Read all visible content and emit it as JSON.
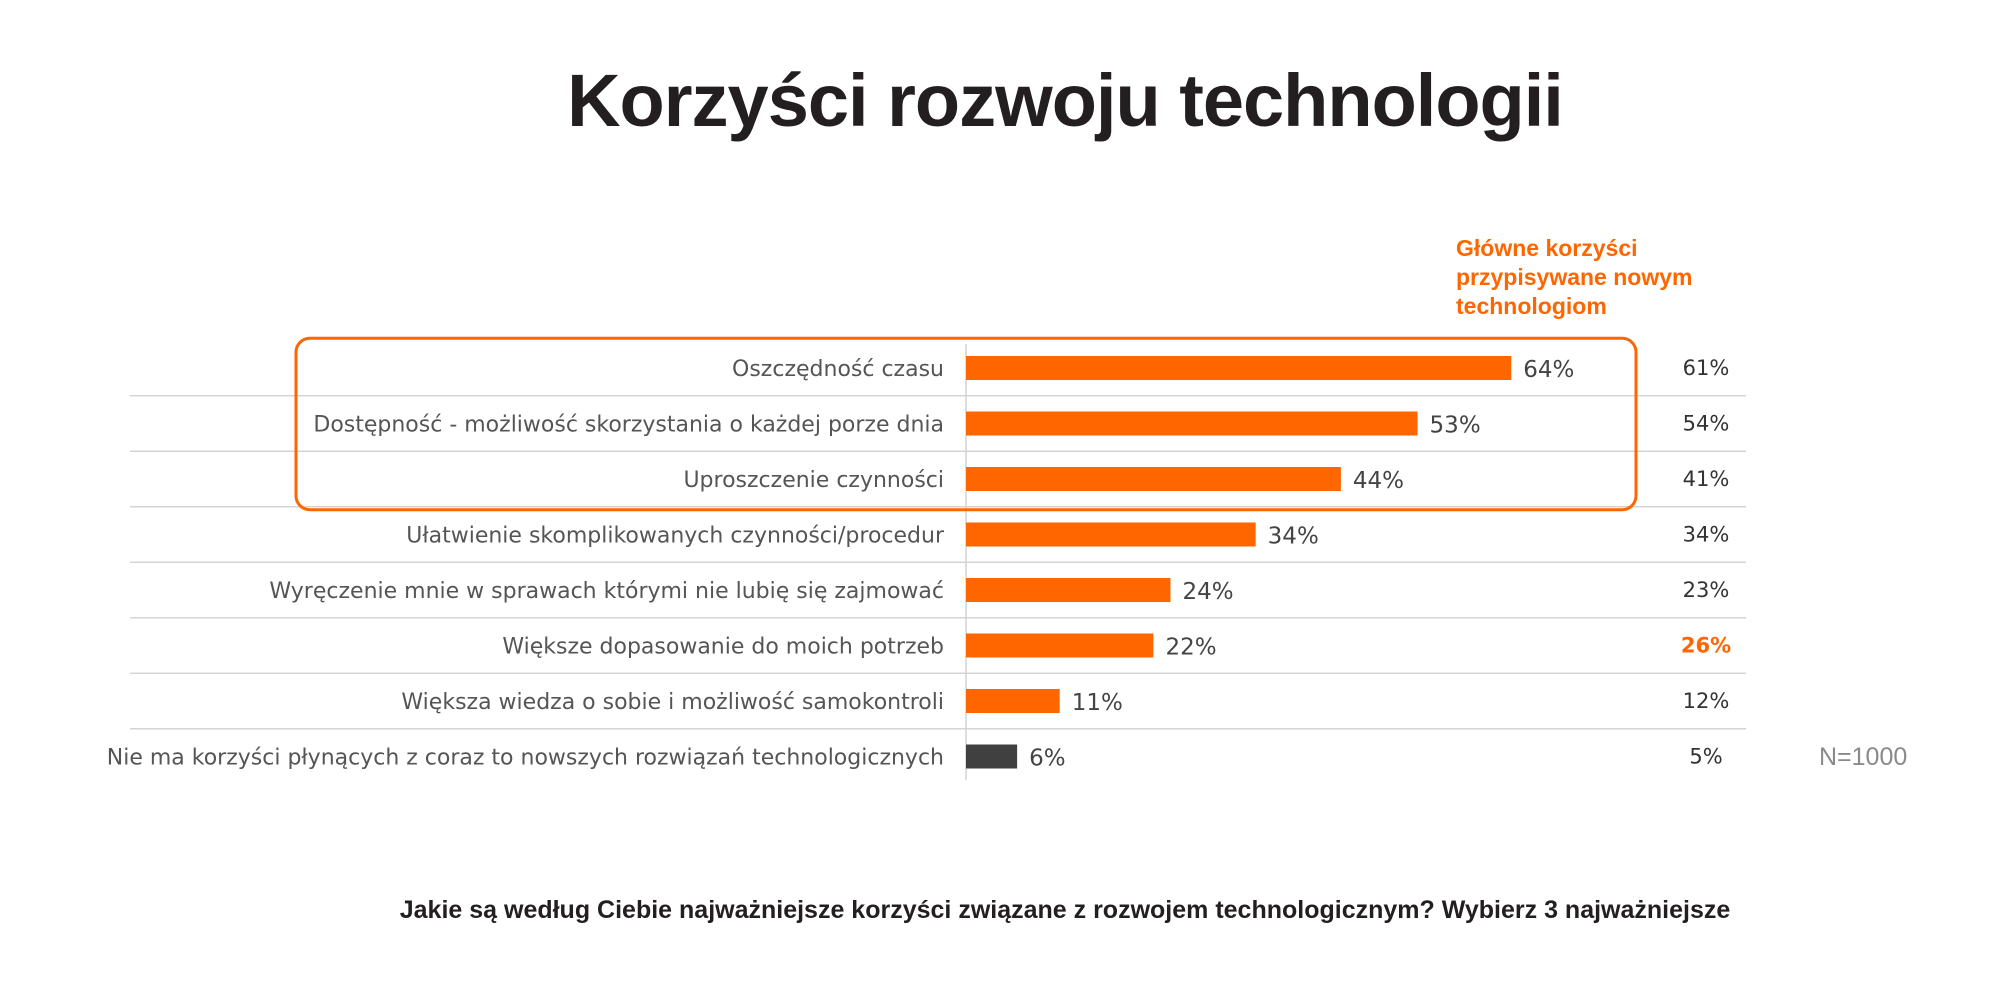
{
  "page": {
    "title": "Korzyści rozwoju technologii",
    "legend_title": "Główne korzyści przypisywane nowym technologiom",
    "n_note": "N=1000",
    "question": "Jakie są według Ciebie najważniejsze korzyści związane z rozwojem technologicznym? Wybierz 3 najważniejsze"
  },
  "colors": {
    "accent": "#ff6600",
    "negative_bar": "#404040",
    "grid": "#d4d4d4"
  },
  "chart_data": {
    "type": "bar",
    "orientation": "horizontal",
    "title": "Korzyści rozwoju technologii",
    "categories": [
      "Oszczędność czasu",
      "Dostępność - możliwość skorzystania o każdej porze dnia",
      "Uproszczenie czynności",
      "Ułatwienie skomplikowanych czynności/procedur",
      "Wyręczenie mnie w sprawach którymi nie lubię się zajmować",
      "Większe dopasowanie do moich potrzeb",
      "Większa wiedza o sobie i możliwość samokontroli",
      "Nie ma korzyści płynących z coraz to nowszych rozwiązań technologicznych"
    ],
    "values": [
      64,
      53,
      44,
      34,
      24,
      22,
      11,
      6
    ],
    "value_labels": [
      "64%",
      "53%",
      "44%",
      "34%",
      "24%",
      "22%",
      "11%",
      "6%"
    ],
    "comparison_values": [
      61,
      54,
      41,
      34,
      23,
      26,
      12,
      5
    ],
    "comparison_labels": [
      "61%",
      "54%",
      "41%",
      "34%",
      "23%",
      "26%",
      "12%",
      "5%"
    ],
    "comparison_highlight_index": 5,
    "negative_category_index": 7,
    "highlighted_box_categories": [
      0,
      1,
      2
    ],
    "xlim": [
      0,
      100
    ],
    "grid": true
  }
}
